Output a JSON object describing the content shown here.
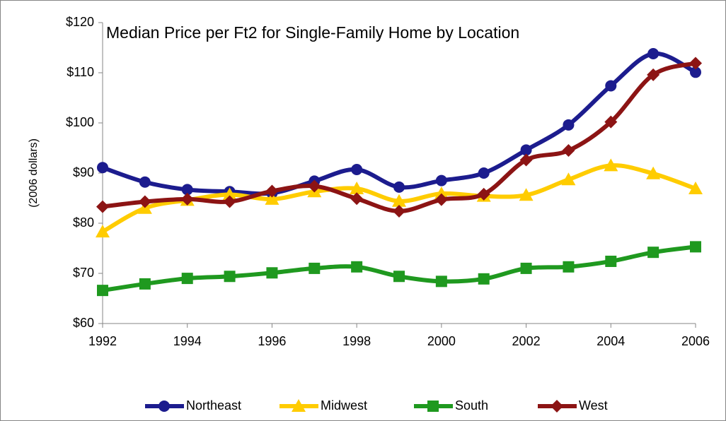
{
  "chart_data": {
    "type": "line",
    "title": "Median Price per Ft2 for Single-Family Home by Location",
    "y_label": "(2006 dollars)",
    "x": [
      1992,
      1993,
      1994,
      1995,
      1996,
      1997,
      1998,
      1999,
      2000,
      2001,
      2002,
      2003,
      2004,
      2005,
      2006
    ],
    "xlim": [
      1992,
      2006
    ],
    "xticks": [
      1992,
      1994,
      1996,
      1998,
      2000,
      2002,
      2004,
      2006
    ],
    "ylim": [
      60,
      120
    ],
    "yticks": [
      {
        "value": 60,
        "label": "$60"
      },
      {
        "value": 70,
        "label": "$70"
      },
      {
        "value": 80,
        "label": "$80"
      },
      {
        "value": 90,
        "label": "$90"
      },
      {
        "value": 100,
        "label": "$100"
      },
      {
        "value": 110,
        "label": "$110"
      },
      {
        "value": 120,
        "label": "$120"
      }
    ],
    "grid": false,
    "legend": "bottom",
    "series": [
      {
        "name": "Northeast",
        "color": "#1c1c8e",
        "marker": "circle",
        "values": [
          91.1,
          88.2,
          86.7,
          86.3,
          86.0,
          88.4,
          90.7,
          87.2,
          88.5,
          90.0,
          94.6,
          99.6,
          107.4,
          113.8,
          110.1
        ]
      },
      {
        "name": "Midwest",
        "color": "#ffcc00",
        "marker": "triangle",
        "values": [
          78.3,
          83.0,
          84.6,
          85.7,
          84.8,
          86.3,
          86.9,
          84.4,
          85.9,
          85.4,
          85.6,
          88.7,
          91.5,
          89.9,
          86.9
        ]
      },
      {
        "name": "South",
        "color": "#1f991f",
        "marker": "square",
        "values": [
          66.6,
          67.9,
          69.0,
          69.4,
          70.1,
          71.0,
          71.3,
          69.4,
          68.4,
          68.9,
          71.0,
          71.3,
          72.4,
          74.2,
          75.3
        ]
      },
      {
        "name": "West",
        "color": "#8c1414",
        "marker": "diamond",
        "values": [
          83.3,
          84.3,
          84.8,
          84.3,
          86.4,
          87.4,
          84.9,
          82.4,
          84.7,
          85.8,
          92.6,
          94.5,
          100.2,
          109.6,
          111.9
        ]
      }
    ]
  }
}
